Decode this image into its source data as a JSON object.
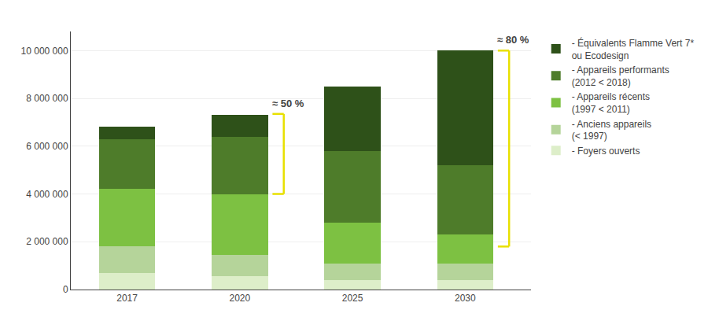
{
  "chart_data": {
    "type": "bar",
    "stacked": true,
    "categories": [
      "2017",
      "2020",
      "2025",
      "2030"
    ],
    "series": [
      {
        "name": "- Foyers ouverts",
        "color": "#ddeec9",
        "values": [
          700000,
          550000,
          400000,
          400000
        ]
      },
      {
        "name": "- Anciens appareils\n(< 1997)",
        "color": "#b5d49a",
        "values": [
          1100000,
          900000,
          700000,
          700000
        ]
      },
      {
        "name": "- Appareils récents\n(1997 < 2011)",
        "color": "#7dc142",
        "values": [
          2400000,
          2550000,
          1700000,
          1200000
        ]
      },
      {
        "name": "- Appareils performants\n(2012 < 2018)",
        "color": "#4e7c2a",
        "values": [
          2100000,
          2400000,
          3000000,
          2900000
        ]
      },
      {
        "name": "- Équivalents Flamme Vert 7*\nou Ecodesign",
        "color": "#2e5119",
        "values": [
          500000,
          900000,
          2700000,
          4800000
        ]
      }
    ],
    "ylim": [
      0,
      10800000
    ],
    "yticks": [
      0,
      {
        "value": 2000000,
        "label": "2 000 000"
      },
      {
        "value": 4000000,
        "label": "4 000 000"
      },
      {
        "value": 6000000,
        "label": "6 000 000"
      },
      {
        "value": 8000000,
        "label": "8 000 000"
      },
      {
        "value": 10000000,
        "label": "10 000 000"
      }
    ],
    "grid": true,
    "legend": "right",
    "annotations": [
      {
        "text": "≈ 50 %",
        "category": "2020",
        "bottom": 4000000,
        "top": 7350000,
        "color": "#e8e000"
      },
      {
        "text": "≈ 80 %",
        "category": "2030",
        "bottom": 1800000,
        "top": 10000000,
        "color": "#e8e000"
      }
    ]
  }
}
